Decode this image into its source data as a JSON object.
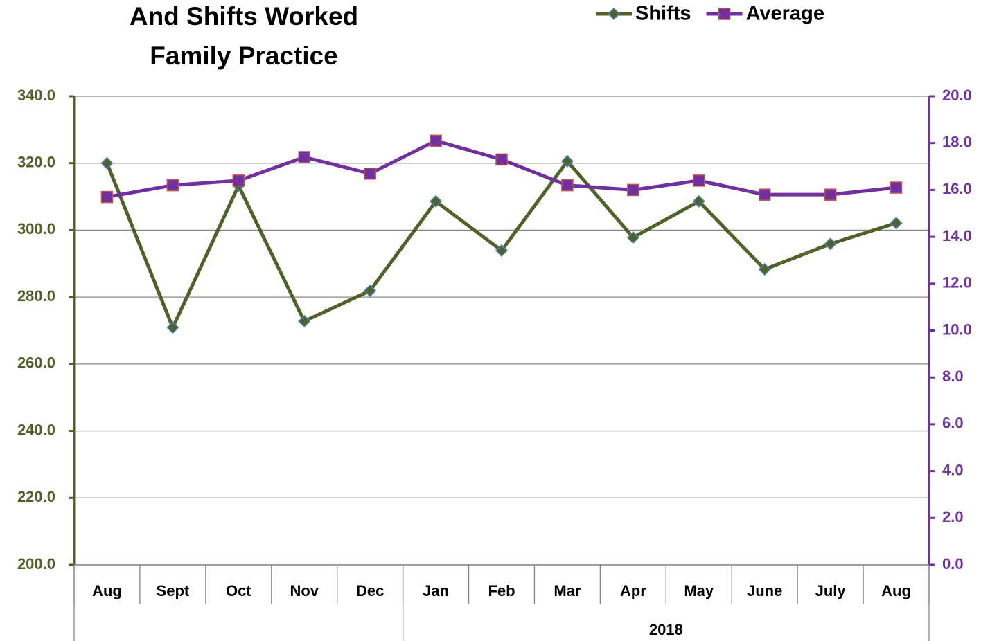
{
  "chart_data": {
    "type": "line",
    "title": [
      "And Shifts Worked",
      "Family Practice"
    ],
    "categories": [
      "Aug",
      "Sept",
      "Oct",
      "Nov",
      "Dec",
      "Jan",
      "Feb",
      "Mar",
      "Apr",
      "May",
      "June",
      "July",
      "Aug"
    ],
    "category_groups": [
      {
        "label": null,
        "count": 5
      },
      {
        "label": "2018",
        "count": 8
      }
    ],
    "series": [
      {
        "name": "Shifts",
        "color": "#4f6228",
        "marker_edge": "#4a7ebb",
        "marker": "diamond",
        "values": [
          320.0,
          270.9,
          313.3,
          272.8,
          281.9,
          308.6,
          293.9,
          320.6,
          297.8,
          308.6,
          288.3,
          295.9,
          302.1
        ]
      },
      {
        "name": "Average",
        "color": "#7030a0",
        "marker_edge": "#c0504d",
        "marker": "square",
        "axis": "y2",
        "values": [
          15.7,
          16.2,
          16.4,
          17.4,
          16.7,
          18.1,
          17.3,
          16.2,
          16.0,
          16.4,
          15.8,
          15.8,
          16.1
        ]
      }
    ],
    "ylim": [
      200,
      340
    ],
    "yticks": [
      {
        "value": 200,
        "label": "200.0"
      },
      {
        "value": 220,
        "label": "220.0"
      },
      {
        "value": 240,
        "label": "240.0"
      },
      {
        "value": 260,
        "label": "260.0"
      },
      {
        "value": 280,
        "label": "280.0"
      },
      {
        "value": 300,
        "label": "300.0"
      },
      {
        "value": 320,
        "label": "320.0"
      },
      {
        "value": 340,
        "label": "340.0"
      }
    ],
    "y2lim": [
      0,
      20
    ],
    "y2ticks": [
      {
        "value": 0,
        "label": "0.0"
      },
      {
        "value": 2,
        "label": "2.0"
      },
      {
        "value": 4,
        "label": "4.0"
      },
      {
        "value": 6,
        "label": "6.0"
      },
      {
        "value": 8,
        "label": "8.0"
      },
      {
        "value": 10,
        "label": "10.0"
      },
      {
        "value": 12,
        "label": "12.0"
      },
      {
        "value": 14,
        "label": "14.0"
      },
      {
        "value": 16,
        "label": "16.0"
      },
      {
        "value": 18,
        "label": "18.0"
      },
      {
        "value": 20,
        "label": "20.0"
      }
    ],
    "grid": true,
    "legend": "top"
  }
}
